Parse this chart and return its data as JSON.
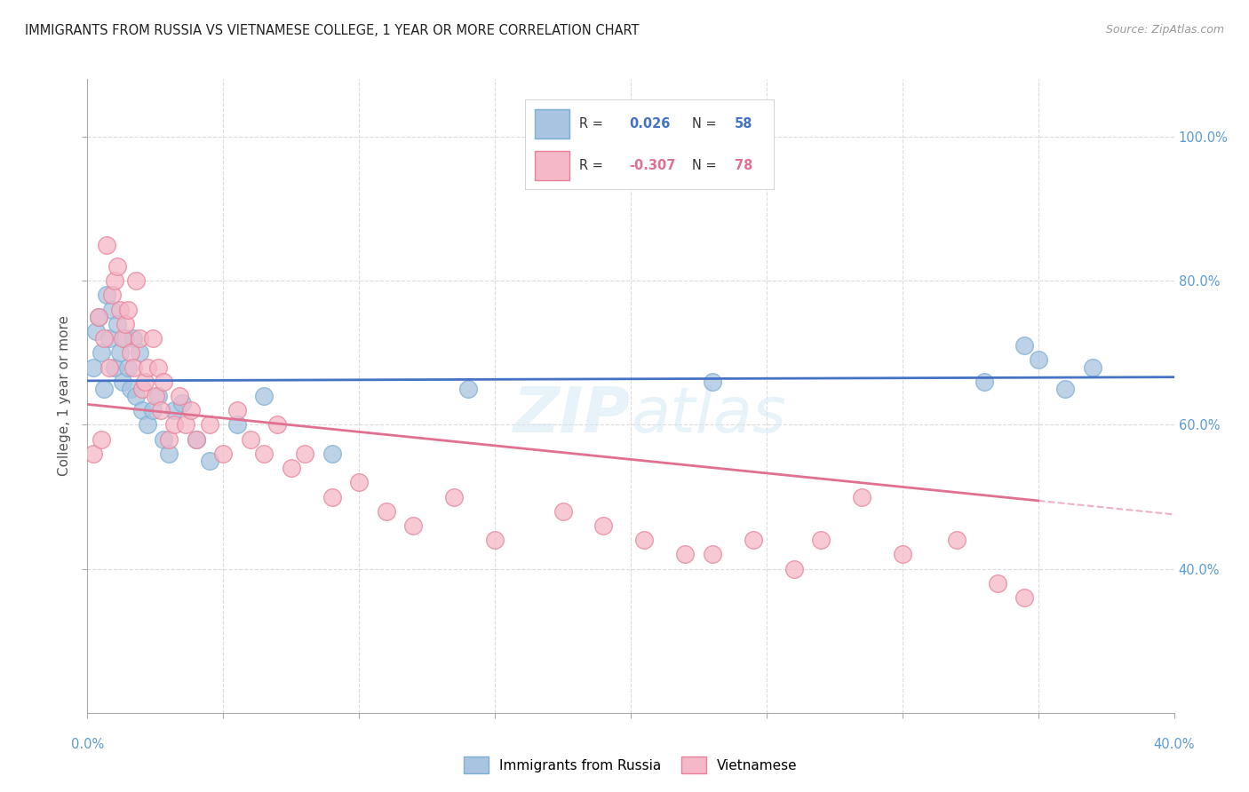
{
  "title": "IMMIGRANTS FROM RUSSIA VS VIETNAMESE COLLEGE, 1 YEAR OR MORE CORRELATION CHART",
  "source": "Source: ZipAtlas.com",
  "ylabel_left": "College, 1 year or more",
  "russia_color": "#a8c4e0",
  "russian_edge": "#7bafd4",
  "viet_color": "#f4b8c8",
  "viet_edge": "#e8829a",
  "line_russia": "#4472c4",
  "line_viet": "#e07090",
  "axis_color": "#5b9bd5",
  "grid_color": "#cccccc",
  "background": "#ffffff",
  "watermark_color": "#d0e8f5",
  "russia_x": [
    0.2,
    0.3,
    0.4,
    0.5,
    0.6,
    0.7,
    0.8,
    0.9,
    1.0,
    1.1,
    1.2,
    1.3,
    1.4,
    1.5,
    1.6,
    1.7,
    1.8,
    1.9,
    2.0,
    2.2,
    2.4,
    2.6,
    2.8,
    3.0,
    3.2,
    3.5,
    4.0,
    4.5,
    5.5,
    6.5,
    9.0,
    14.0,
    23.0,
    33.0,
    34.5,
    35.0,
    36.0,
    37.0
  ],
  "russia_y": [
    68.0,
    73.0,
    75.0,
    70.0,
    65.0,
    78.0,
    72.0,
    76.0,
    68.0,
    74.0,
    70.0,
    66.0,
    72.0,
    68.0,
    65.0,
    72.0,
    64.0,
    70.0,
    62.0,
    60.0,
    62.0,
    64.0,
    58.0,
    56.0,
    62.0,
    63.0,
    58.0,
    55.0,
    60.0,
    64.0,
    56.0,
    65.0,
    66.0,
    66.0,
    71.0,
    69.0,
    65.0,
    68.0
  ],
  "viet_x": [
    0.2,
    0.4,
    0.5,
    0.6,
    0.7,
    0.8,
    0.9,
    1.0,
    1.1,
    1.2,
    1.3,
    1.4,
    1.5,
    1.6,
    1.7,
    1.8,
    1.9,
    2.0,
    2.1,
    2.2,
    2.4,
    2.5,
    2.6,
    2.7,
    2.8,
    3.0,
    3.2,
    3.4,
    3.6,
    3.8,
    4.0,
    4.5,
    5.0,
    5.5,
    6.0,
    6.5,
    7.0,
    7.5,
    8.0,
    9.0,
    10.0,
    11.0,
    12.0,
    13.5,
    15.0,
    17.5,
    19.0,
    20.5,
    22.0,
    23.0,
    24.5,
    26.0,
    27.0,
    28.5,
    30.0,
    32.0,
    33.5,
    34.5
  ],
  "viet_y": [
    56.0,
    75.0,
    58.0,
    72.0,
    85.0,
    68.0,
    78.0,
    80.0,
    82.0,
    76.0,
    72.0,
    74.0,
    76.0,
    70.0,
    68.0,
    80.0,
    72.0,
    65.0,
    66.0,
    68.0,
    72.0,
    64.0,
    68.0,
    62.0,
    66.0,
    58.0,
    60.0,
    64.0,
    60.0,
    62.0,
    58.0,
    60.0,
    56.0,
    62.0,
    58.0,
    56.0,
    60.0,
    54.0,
    56.0,
    50.0,
    52.0,
    48.0,
    46.0,
    50.0,
    44.0,
    48.0,
    46.0,
    44.0,
    42.0,
    42.0,
    44.0,
    40.0,
    44.0,
    50.0,
    42.0,
    44.0,
    38.0,
    36.0
  ],
  "xlim": [
    0,
    40
  ],
  "ylim": [
    20,
    108
  ],
  "yticks": [
    40,
    60,
    80,
    100
  ],
  "xticks": [
    0,
    5,
    10,
    15,
    20,
    25,
    30,
    35,
    40
  ]
}
